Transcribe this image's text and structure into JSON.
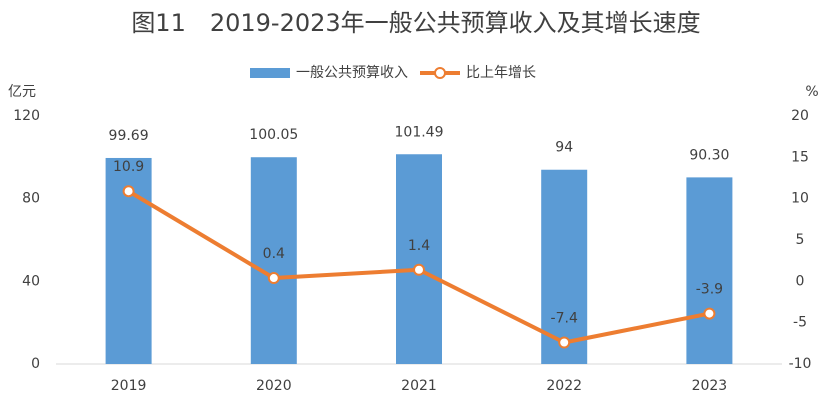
{
  "chart_data": {
    "type": "bar",
    "title": "图11　2019-2023年一般公共预算收入及其增长速度",
    "y_label": "亿元",
    "y2_label": "%",
    "categories": [
      "2019",
      "2020",
      "2021",
      "2022",
      "2023"
    ],
    "series": [
      {
        "name": "一般公共预算收入",
        "color": "#5b9bd5",
        "values": [
          99.69,
          100.05,
          101.49,
          94,
          90.3
        ],
        "value_labels": [
          "99.69",
          "100.05",
          "101.49",
          "94",
          "90.30"
        ]
      },
      {
        "name": "比上年增长",
        "type": "line",
        "axis": "y2",
        "color": "#ed7d31",
        "values": [
          10.9,
          0.4,
          1.4,
          -7.4,
          -3.9
        ]
      }
    ],
    "ylim": [
      0,
      120
    ],
    "yticks": [
      0,
      40,
      80,
      120
    ],
    "y2lim": [
      -10,
      20
    ],
    "y2ticks": [
      -10,
      -5,
      0,
      5,
      10,
      15,
      20
    ],
    "grid": false,
    "legend": "top"
  }
}
